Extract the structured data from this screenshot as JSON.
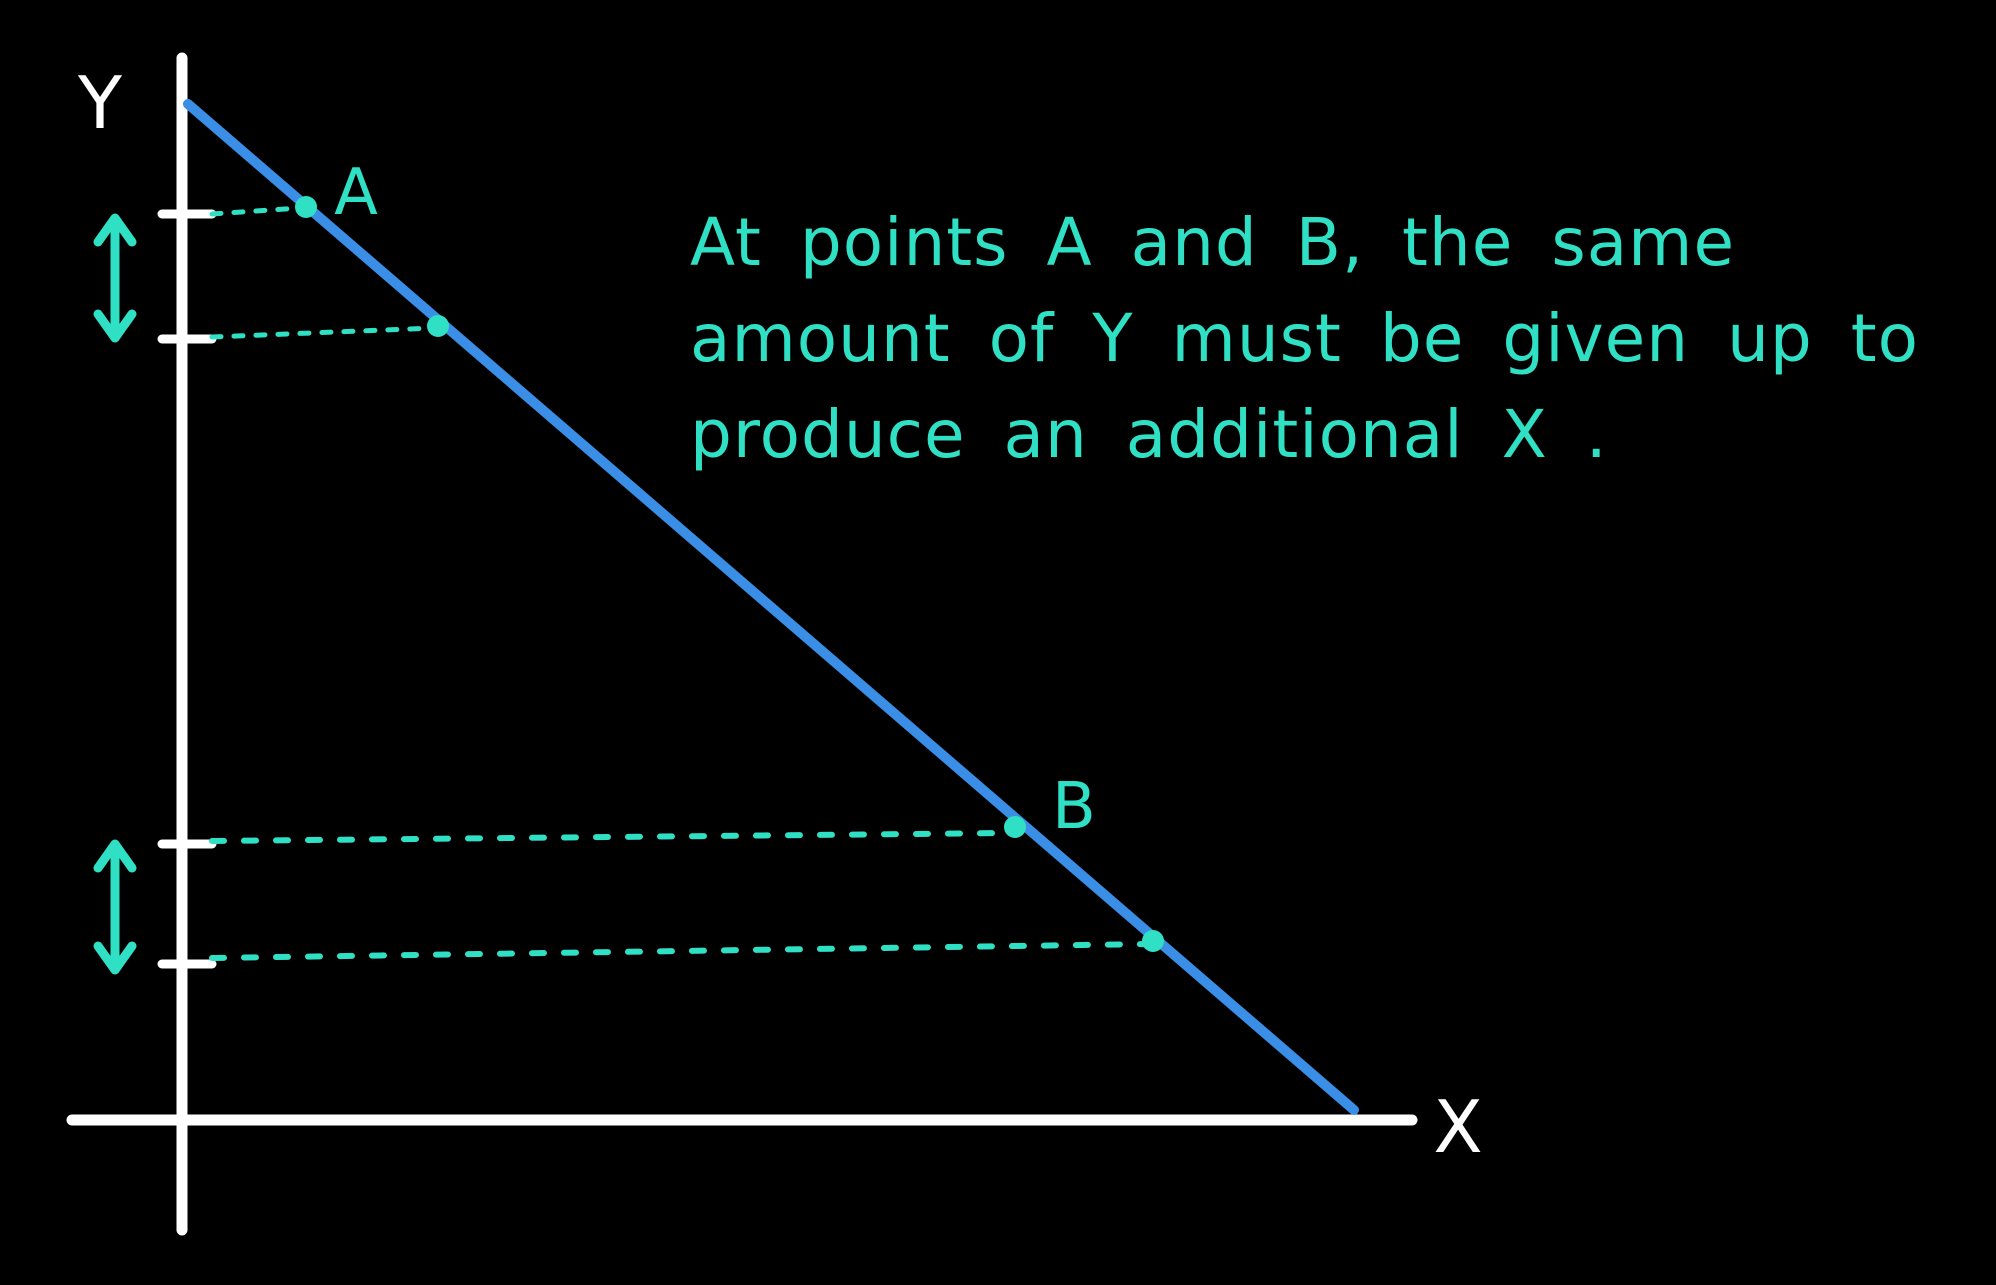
{
  "colors": {
    "background": "#000000",
    "axis": "#ffffff",
    "curve": "#3a8ee6",
    "annotation": "#2fe0c4"
  },
  "axes": {
    "y_label": "Y",
    "x_label": "X"
  },
  "points": {
    "a_label": "A",
    "b_label": "B"
  },
  "caption": {
    "line1": "At points  A  and  B, the  same",
    "line2": "amount  of  Y  must  be  given  up  to",
    "line3": "produce  an  additional  X ."
  }
}
